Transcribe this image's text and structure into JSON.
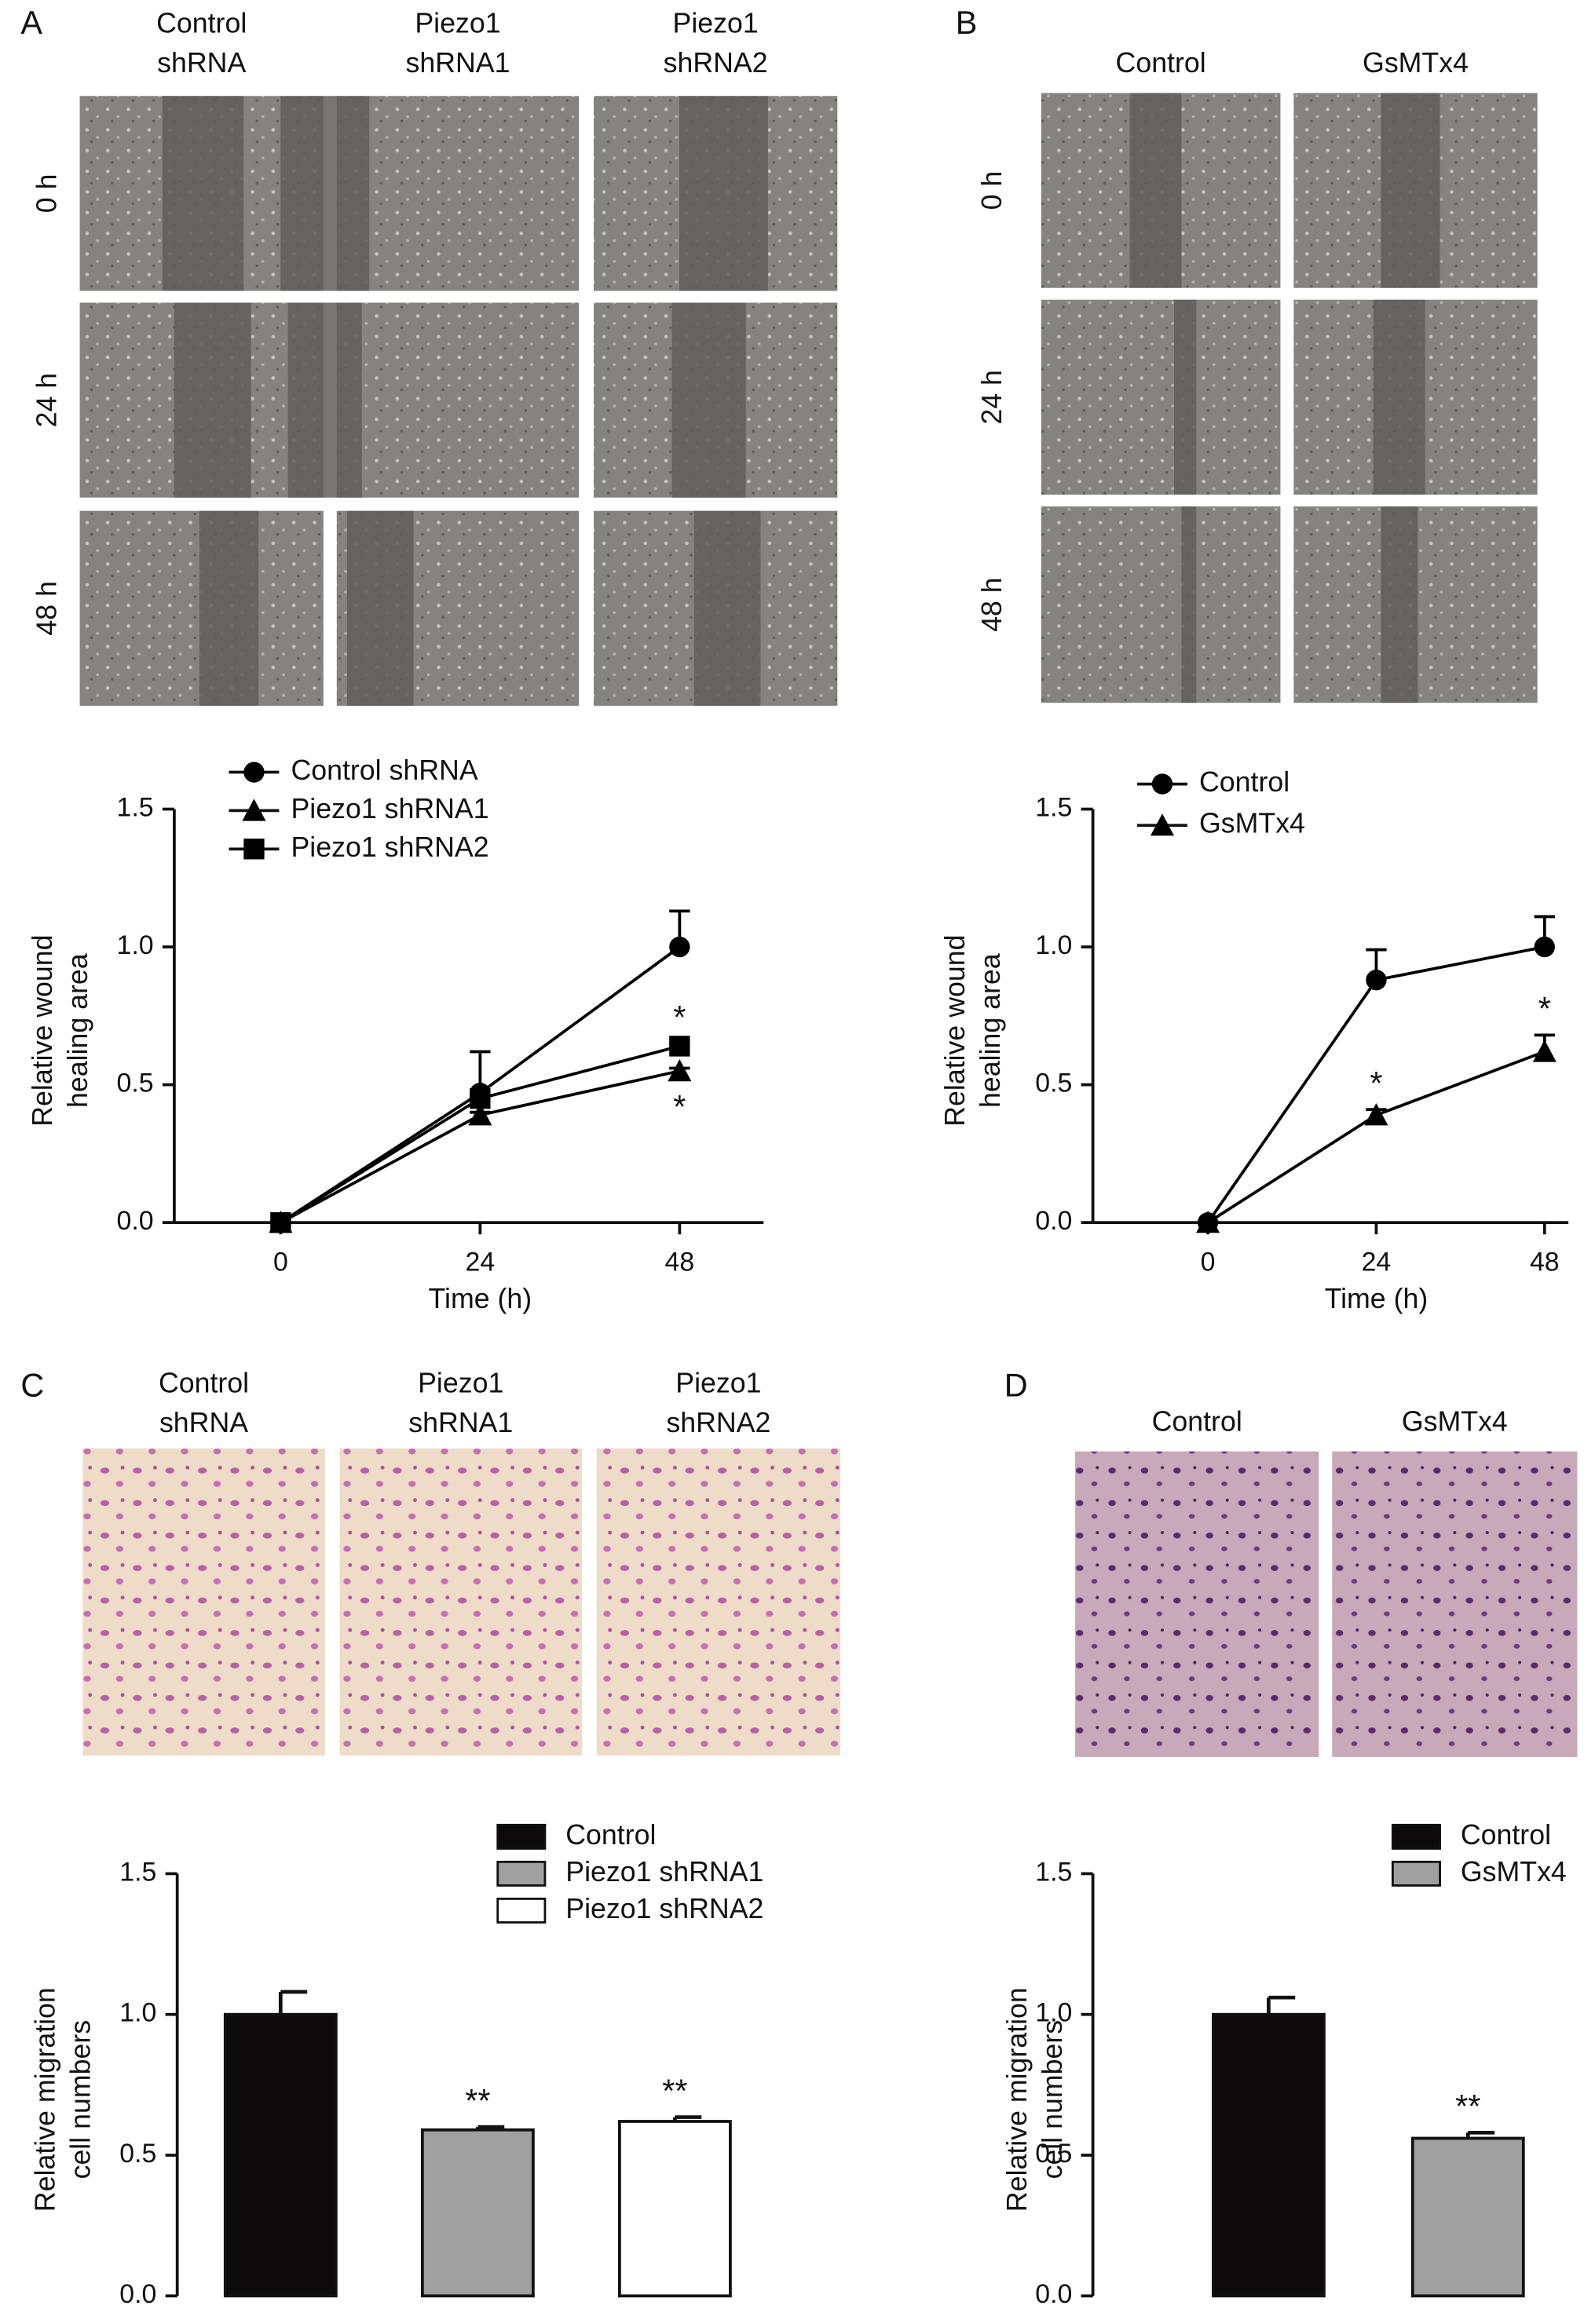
{
  "panels": [
    {
      "label": "A",
      "columns": [
        [
          "Control",
          "shRNA"
        ],
        [
          "Piezo1",
          "shRNA1"
        ],
        [
          "Piezo1",
          "shRNA2"
        ]
      ],
      "rows": [
        "0 h",
        "24 h",
        "48 h"
      ]
    },
    {
      "label": "B",
      "columns": [
        [
          "Control"
        ],
        [
          "GsMTx4"
        ]
      ],
      "rows": [
        "0 h",
        "24 h",
        "48 h"
      ]
    },
    {
      "label": "C",
      "columns": [
        [
          "Control",
          "shRNA"
        ],
        [
          "Piezo1",
          "shRNA1"
        ],
        [
          "Piezo1",
          "shRNA2"
        ]
      ]
    },
    {
      "label": "D",
      "columns": [
        [
          "Control"
        ],
        [
          "GsMTx4"
        ]
      ]
    }
  ],
  "chart_data": [
    {
      "type": "line",
      "ylabel": [
        "Relative wound",
        "healing area"
      ],
      "xlabel": "Time (h)",
      "x": [
        0,
        24,
        48
      ],
      "xlim": [
        -12.8,
        58.1
      ],
      "xticks": [
        0,
        24,
        48
      ],
      "ylim": [
        0,
        1.5
      ],
      "yticks": [
        {
          "value": 0,
          "label": "0.0"
        },
        {
          "value": 0.5,
          "label": "0.5"
        },
        {
          "value": 1,
          "label": "1.0"
        },
        {
          "value": 1.5,
          "label": "1.5"
        }
      ],
      "series": [
        {
          "name": "Control shRNA",
          "color": "#000000",
          "marker": "circle",
          "values": [
            0,
            0.47,
            1.0
          ],
          "errors": [
            0,
            0.15,
            0.13
          ]
        },
        {
          "name": "Piezo1 shRNA1",
          "color": "#000000",
          "marker": "triangle",
          "values": [
            0,
            0.39,
            0.55
          ],
          "errors": [
            0,
            0.01,
            0.01
          ]
        },
        {
          "name": "Piezo1 shRNA2",
          "color": "#000000",
          "marker": "square",
          "values": [
            0,
            0.45,
            0.64
          ],
          "errors": [
            0,
            0.01,
            0.01
          ]
        }
      ],
      "annotations": [
        {
          "text": "*",
          "series": 2,
          "index": 2,
          "position": "above"
        },
        {
          "text": "*",
          "series": 1,
          "index": 2,
          "position": "below"
        }
      ]
    },
    {
      "type": "line",
      "ylabel": [
        "Relative wound",
        "healing area"
      ],
      "xlabel": "Time (h)",
      "x": [
        0,
        24,
        48
      ],
      "xlim": [
        -16.4,
        51.4
      ],
      "xticks": [
        0,
        24,
        48
      ],
      "ylim": [
        0,
        1.5
      ],
      "yticks": [
        {
          "value": 0,
          "label": "0.0"
        },
        {
          "value": 0.5,
          "label": "0.5"
        },
        {
          "value": 1,
          "label": "1.0"
        },
        {
          "value": 1.5,
          "label": "1.5"
        }
      ],
      "series": [
        {
          "name": "Control",
          "color": "#000000",
          "marker": "circle",
          "values": [
            0,
            0.88,
            1.0
          ],
          "errors": [
            0,
            0.11,
            0.11
          ]
        },
        {
          "name": "GsMTx4",
          "color": "#000000",
          "marker": "triangle",
          "values": [
            0,
            0.39,
            0.62
          ],
          "errors": [
            0,
            0.02,
            0.06
          ]
        }
      ],
      "annotations": [
        {
          "text": "*",
          "series": 1,
          "index": 1,
          "position": "above"
        },
        {
          "text": "*",
          "series": 1,
          "index": 2,
          "position": "above"
        }
      ]
    },
    {
      "type": "bar",
      "ylabel": [
        "Relative migration",
        "cell numbers"
      ],
      "categories": [
        "Control",
        "Piezo1 shRNA1",
        "Piezo1 shRNA2"
      ],
      "values": [
        1.0,
        0.59,
        0.62
      ],
      "errors": [
        0.08,
        0.01,
        0.015
      ],
      "colors": [
        "#0d0a0b",
        "#a0a0a0",
        "#ffffff"
      ],
      "ylim": [
        0,
        1.5
      ],
      "yticks": [
        {
          "value": 0,
          "label": "0.0"
        },
        {
          "value": 0.5,
          "label": "0.5"
        },
        {
          "value": 1,
          "label": "1.0"
        },
        {
          "value": 1.5,
          "label": "1.5"
        }
      ],
      "annotations": [
        {
          "text": "**",
          "index": 1
        },
        {
          "text": "**",
          "index": 2
        }
      ]
    },
    {
      "type": "bar",
      "ylabel": [
        "Relative migration",
        "cell numbers"
      ],
      "categories": [
        "Control",
        "GsMTx4"
      ],
      "values": [
        1.0,
        0.56
      ],
      "errors": [
        0.06,
        0.02
      ],
      "colors": [
        "#0d0a0b",
        "#a0a0a0"
      ],
      "ylim": [
        0,
        1.5
      ],
      "yticks": [
        {
          "value": 0,
          "label": "0.0"
        },
        {
          "value": 0.5,
          "label": "0.5"
        },
        {
          "value": 1,
          "label": "1.0"
        },
        {
          "value": 1.5,
          "label": "1.5"
        }
      ],
      "annotations": [
        {
          "text": "**",
          "index": 1
        }
      ]
    }
  ]
}
